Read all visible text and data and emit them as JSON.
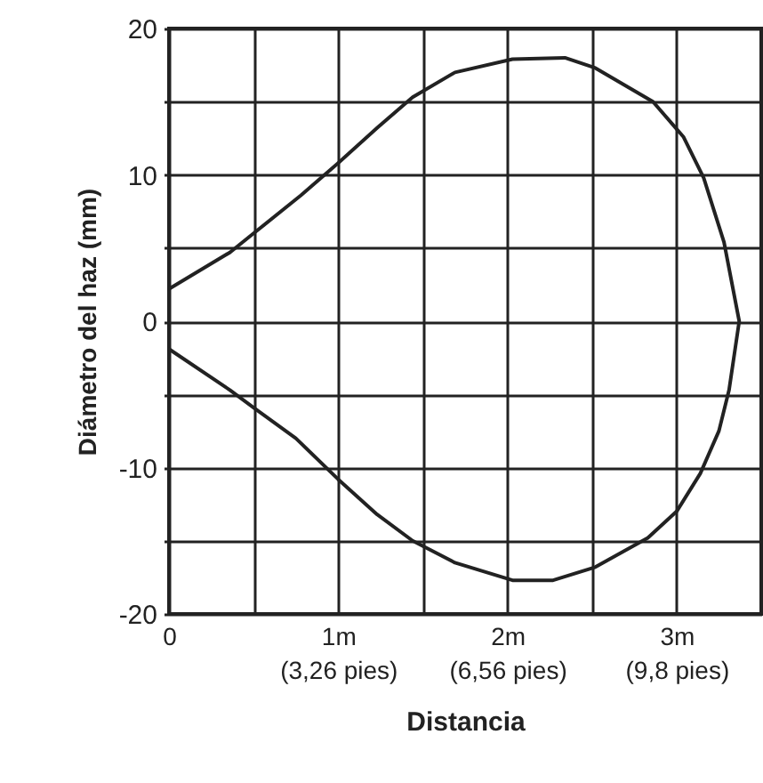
{
  "chart_data": {
    "type": "line",
    "xlabel": "Distancia",
    "ylabel": "Diámetro del haz (mm)",
    "grid": true,
    "xlim": [
      0,
      3.5
    ],
    "ylim": [
      -20,
      20
    ],
    "xticks": [
      0,
      {
        "value": 0.5,
        "label": null
      },
      {
        "value": 1,
        "label": "1m"
      },
      {
        "value": 1.5,
        "label": null
      },
      {
        "value": 2,
        "label": "2m"
      },
      {
        "value": 2.5,
        "label": null
      },
      {
        "value": 3,
        "label": "3m"
      },
      {
        "value": 3.5,
        "label": null
      }
    ],
    "annotations": [
      "(3,26 pies)",
      "(6,56 pies)",
      "(9,8 pies)"
    ],
    "yticks": [
      -20,
      {
        "value": -15,
        "label": null
      },
      -10,
      {
        "value": -5,
        "label": null
      },
      0,
      {
        "value": 5,
        "label": null
      },
      10,
      {
        "value": 15,
        "label": null
      },
      20
    ],
    "series": [
      {
        "color": "#222222",
        "x": [
          0,
          0.36,
          0.5,
          0.78,
          1.0,
          1.23,
          1.44,
          1.69,
          2.03,
          2.34,
          2.52,
          2.86,
          3.04,
          3.16,
          3.28,
          3.37,
          3.31,
          3.25,
          3.14,
          3.0,
          2.83,
          2.52,
          2.27,
          2.03,
          1.69,
          1.44,
          1.23,
          1.0,
          0.75,
          0.5,
          0.36,
          0
        ],
        "values": [
          2.2,
          4.7,
          6.0,
          8.6,
          10.8,
          13.2,
          15.3,
          17.0,
          17.9,
          18.0,
          17.3,
          15.0,
          12.6,
          9.8,
          5.4,
          0,
          -4.7,
          -7.5,
          -10.4,
          -13.0,
          -14.8,
          -16.8,
          -17.7,
          -17.7,
          -16.5,
          -15.0,
          -13.2,
          -10.8,
          -8.0,
          -5.9,
          -4.7,
          -1.9
        ]
      }
    ]
  }
}
